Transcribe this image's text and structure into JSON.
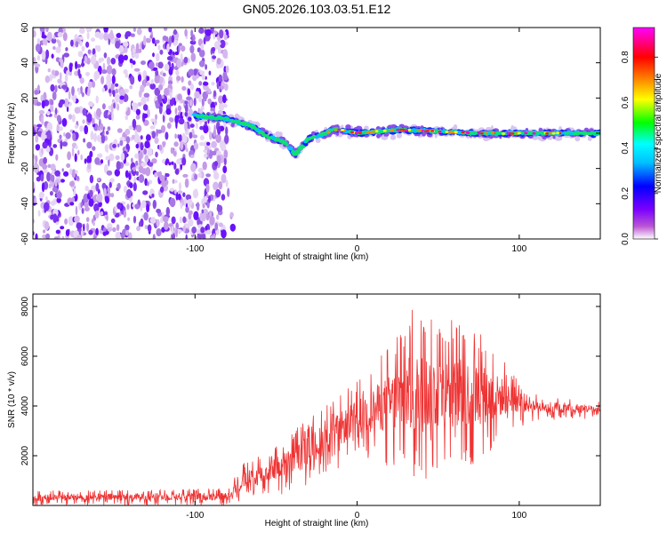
{
  "title": "GN05.2026.103.03.51.E12",
  "chart_data": [
    {
      "type": "heatmap",
      "xlabel": "Height of straight line (km)",
      "ylabel": "Frequency (Hz)",
      "xlim": [
        -200,
        150
      ],
      "ylim": [
        -60,
        60
      ],
      "x_ticks": [
        -100,
        0,
        100
      ],
      "y_ticks": [
        -60,
        -40,
        -20,
        0,
        20,
        40,
        60
      ],
      "colorbar": {
        "label": "Normalized spectral amplitude",
        "range": [
          0.0,
          0.93
        ],
        "ticks": [
          0.0,
          0.2,
          0.4,
          0.6,
          0.8
        ],
        "colors": [
          "#ffffff",
          "#ba55d3",
          "#7b00ff",
          "#0000ff",
          "#00bfff",
          "#00ffff",
          "#00ff00",
          "#ffff00",
          "#ff7f00",
          "#ff0000",
          "#ff00ff"
        ]
      },
      "noise_region_x": [
        -200,
        -80
      ],
      "ridge": [
        {
          "x": -100,
          "f": 10
        },
        {
          "x": -80,
          "f": 8
        },
        {
          "x": -65,
          "f": 4
        },
        {
          "x": -55,
          "f": -2
        },
        {
          "x": -45,
          "f": -5
        },
        {
          "x": -38,
          "f": -12
        },
        {
          "x": -30,
          "f": -3
        },
        {
          "x": -20,
          "f": 0
        },
        {
          "x": -15,
          "f": 2
        },
        {
          "x": -10,
          "f": 2
        },
        {
          "x": 0,
          "f": 0
        },
        {
          "x": 25,
          "f": 2
        },
        {
          "x": 50,
          "f": 1
        },
        {
          "x": 75,
          "f": 0
        },
        {
          "x": 100,
          "f": 0
        },
        {
          "x": 125,
          "f": 0
        },
        {
          "x": 150,
          "f": 0
        }
      ]
    },
    {
      "type": "line",
      "xlabel": "Height of straight line (km)",
      "ylabel": "SNR (10 * v/v)",
      "xlim": [
        -200,
        150
      ],
      "ylim": [
        0,
        8500
      ],
      "x_ticks": [
        -100,
        0,
        100
      ],
      "y_ticks": [
        2000,
        4000,
        6000,
        8000
      ],
      "series_name": "SNR",
      "color": "#ee3333",
      "envelope": [
        {
          "x": -200,
          "lo": 0,
          "hi": 600
        },
        {
          "x": -80,
          "lo": 0,
          "hi": 700
        },
        {
          "x": -70,
          "lo": 200,
          "hi": 1700
        },
        {
          "x": -55,
          "lo": 400,
          "hi": 2200
        },
        {
          "x": -40,
          "lo": 400,
          "hi": 3000
        },
        {
          "x": -30,
          "lo": 800,
          "hi": 3500
        },
        {
          "x": -20,
          "lo": 1200,
          "hi": 4000
        },
        {
          "x": -10,
          "lo": 1500,
          "hi": 4500
        },
        {
          "x": 0,
          "lo": 2000,
          "hi": 5000
        },
        {
          "x": 20,
          "lo": 1500,
          "hi": 6500
        },
        {
          "x": 35,
          "lo": 600,
          "hi": 8000
        },
        {
          "x": 55,
          "lo": 1200,
          "hi": 7600
        },
        {
          "x": 75,
          "lo": 1500,
          "hi": 7200
        },
        {
          "x": 95,
          "lo": 3000,
          "hi": 5500
        },
        {
          "x": 110,
          "lo": 3400,
          "hi": 4500
        },
        {
          "x": 150,
          "lo": 3500,
          "hi": 4200
        }
      ]
    }
  ]
}
